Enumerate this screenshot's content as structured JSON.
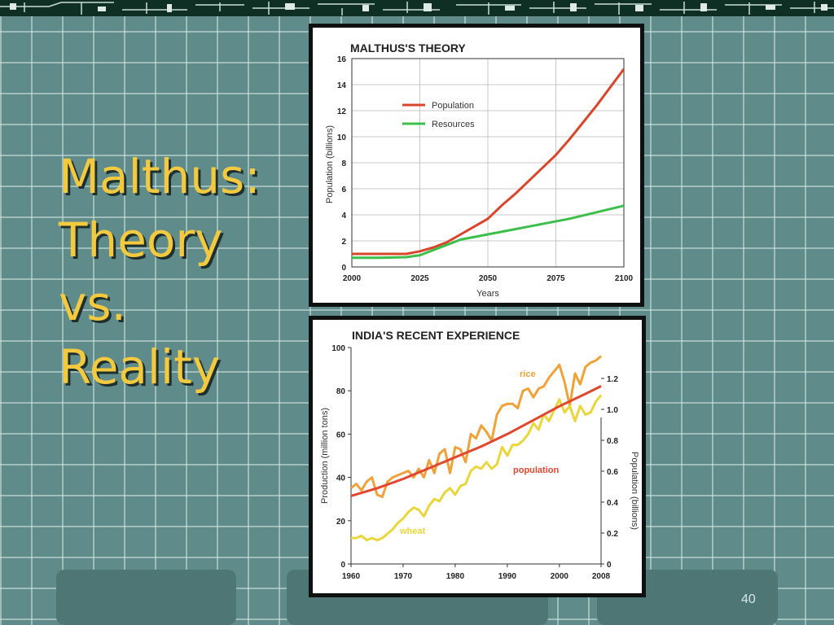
{
  "slide": {
    "title_lines": [
      "Malthus:",
      "Theory",
      "vs.",
      "Reality"
    ],
    "page_number": "40"
  },
  "chart_data": [
    {
      "type": "line",
      "title": "MALTHUS'S THEORY",
      "xlabel": "Years",
      "ylabel": "Population (billions)",
      "xlim": [
        2000,
        2100
      ],
      "ylim": [
        0,
        16
      ],
      "xticks": [
        2000,
        2025,
        2050,
        2075,
        2100
      ],
      "yticks": [
        0,
        2,
        4,
        6,
        8,
        10,
        12,
        14,
        16
      ],
      "grid": true,
      "legend": "top-left",
      "series": [
        {
          "name": "Population",
          "color": "#d9452b",
          "x": [
            2000,
            2010,
            2020,
            2025,
            2030,
            2035,
            2040,
            2045,
            2050,
            2055,
            2060,
            2065,
            2070,
            2075,
            2080,
            2085,
            2090,
            2095,
            2100
          ],
          "y": [
            1.0,
            1.0,
            1.0,
            1.2,
            1.5,
            1.9,
            2.5,
            3.1,
            3.7,
            4.7,
            5.6,
            6.6,
            7.6,
            8.6,
            9.8,
            11.1,
            12.4,
            13.8,
            15.2
          ]
        },
        {
          "name": "Resources",
          "color": "#3bbf4a",
          "x": [
            2000,
            2010,
            2020,
            2025,
            2030,
            2035,
            2040,
            2050,
            2060,
            2070,
            2080,
            2090,
            2100
          ],
          "y": [
            0.7,
            0.7,
            0.75,
            0.9,
            1.3,
            1.7,
            2.1,
            2.5,
            2.9,
            3.3,
            3.7,
            4.2,
            4.7
          ]
        }
      ]
    },
    {
      "type": "line",
      "title": "INDIA'S RECENT EXPERIENCE",
      "xlabel": "",
      "ylabel": "Production (million tons)",
      "y2label": "Population (billions)",
      "xlim": [
        1960,
        2008
      ],
      "ylim": [
        0,
        100
      ],
      "y2lim": [
        0,
        1.4
      ],
      "xticks": [
        1960,
        1970,
        1980,
        1990,
        2000,
        2008
      ],
      "yticks": [
        0,
        20,
        40,
        60,
        80,
        100
      ],
      "y2ticks": [
        0,
        0.2,
        0.4,
        0.6,
        0.8,
        1.0,
        1.2
      ],
      "grid": false,
      "series": [
        {
          "name": "rice",
          "axis": "left",
          "color": "#f0a23a",
          "x": [
            1960,
            1961,
            1962,
            1963,
            1964,
            1965,
            1966,
            1967,
            1968,
            1969,
            1970,
            1971,
            1972,
            1973,
            1974,
            1975,
            1976,
            1977,
            1978,
            1979,
            1980,
            1981,
            1982,
            1983,
            1984,
            1985,
            1986,
            1987,
            1988,
            1989,
            1990,
            1991,
            1992,
            1993,
            1994,
            1995,
            1996,
            1997,
            1998,
            1999,
            2000,
            2001,
            2002,
            2003,
            2004,
            2005,
            2006,
            2007,
            2008
          ],
          "y": [
            35,
            37,
            34,
            38,
            40,
            32,
            31,
            38,
            40,
            41,
            42,
            43,
            40,
            44,
            40,
            48,
            42,
            51,
            53,
            42,
            54,
            53,
            47,
            60,
            58,
            64,
            61,
            57,
            69,
            73,
            74,
            74,
            72,
            80,
            81,
            77,
            81,
            82,
            86,
            89,
            92,
            84,
            73,
            88,
            83,
            91,
            93,
            94,
            96
          ]
        },
        {
          "name": "wheat",
          "axis": "left",
          "color": "#e8d63c",
          "x": [
            1960,
            1961,
            1962,
            1963,
            1964,
            1965,
            1966,
            1967,
            1968,
            1969,
            1970,
            1971,
            1972,
            1973,
            1974,
            1975,
            1976,
            1977,
            1978,
            1979,
            1980,
            1981,
            1982,
            1983,
            1984,
            1985,
            1986,
            1987,
            1988,
            1989,
            1990,
            1991,
            1992,
            1993,
            1994,
            1995,
            1996,
            1997,
            1998,
            1999,
            2000,
            2001,
            2002,
            2003,
            2004,
            2005,
            2006,
            2007,
            2008
          ],
          "y": [
            12,
            12,
            13,
            11,
            12,
            11,
            12,
            14,
            16,
            19,
            21,
            24,
            26,
            25,
            22,
            27,
            30,
            29,
            33,
            35,
            32,
            36,
            37,
            43,
            45,
            44,
            47,
            44,
            46,
            54,
            50,
            55,
            55,
            57,
            60,
            65,
            62,
            69,
            66,
            71,
            76,
            70,
            73,
            66,
            73,
            69,
            70,
            75,
            78
          ]
        },
        {
          "name": "population",
          "axis": "right",
          "color": "#e0472f",
          "x": [
            1960,
            1965,
            1970,
            1975,
            1980,
            1985,
            1990,
            1995,
            2000,
            2005,
            2008
          ],
          "y": [
            0.44,
            0.49,
            0.55,
            0.62,
            0.69,
            0.76,
            0.84,
            0.93,
            1.02,
            1.1,
            1.15
          ]
        }
      ]
    }
  ]
}
